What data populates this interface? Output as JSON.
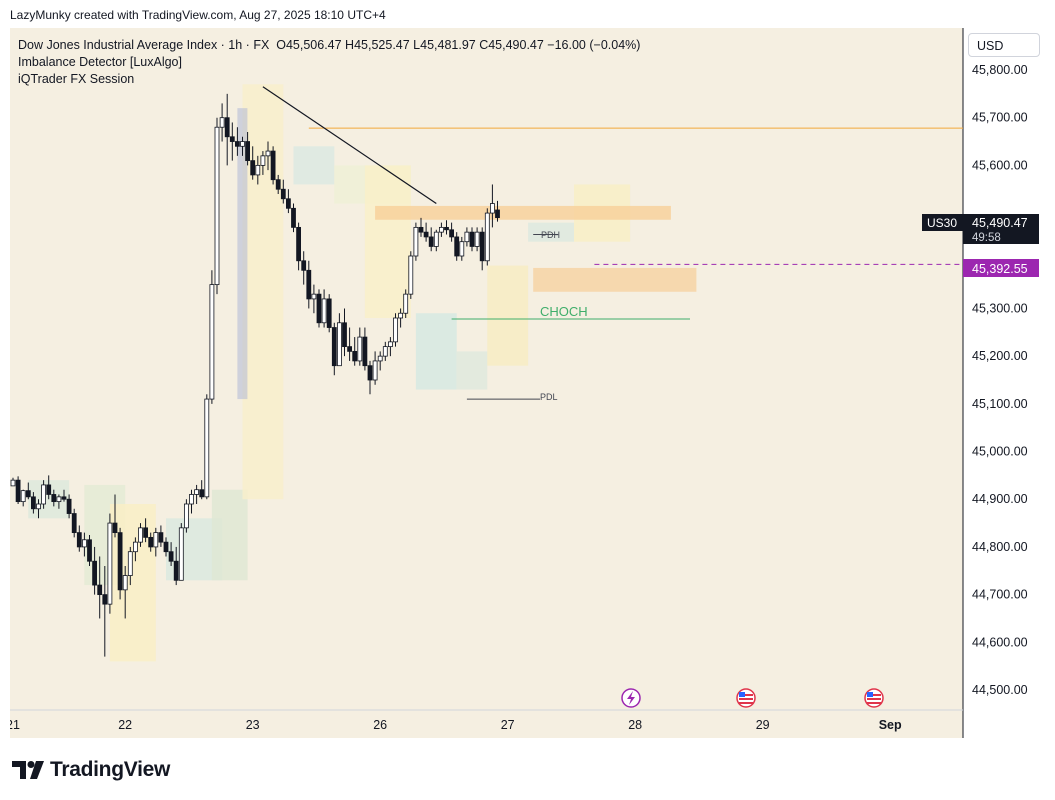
{
  "header": {
    "attribution": "LazyMunky created with TradingView.com, Aug 27, 2025 18:10 UTC+4"
  },
  "legend": {
    "symbol": "Dow Jones Industrial Average Index · 1h · FX",
    "ohlc": "O45,506.47  H45,525.47  L45,481.97  C45,490.47  −16.00 (−0.04%)",
    "indicator1": "Imbalance Detector [LuxAlgo]",
    "indicator2": "iQTrader FX Session"
  },
  "currency_button": "USD",
  "price_tags": {
    "symbol": "US30",
    "last_price": "45,490.47",
    "countdown": "49:58",
    "level_price": "45,392.55"
  },
  "annotations": {
    "choch": "CHOCH",
    "pdh": "PDH",
    "pdl": "PDL"
  },
  "brand": {
    "name": "TradingView"
  },
  "colors": {
    "background": "#f5efe1",
    "up": "#ffffff",
    "down": "#131722",
    "level_line": "#f2a93b",
    "choch": "#3fae6a",
    "dashed_level": "#9c27b0",
    "fvg": "#f7cf98"
  },
  "chart_data": {
    "type": "candlestick",
    "title": "Dow Jones Industrial Average Index · 1h · FX",
    "y_axis": {
      "ticks": [
        44500,
        44600,
        44700,
        44800,
        44900,
        45000,
        45100,
        45200,
        45300,
        45400,
        45500,
        45600,
        45700,
        45800
      ],
      "tick_labels": [
        "44,500.00",
        "44,600.00",
        "44,700.00",
        "44,800.00",
        "44,900.00",
        "45,000.00",
        "45,100.00",
        "45,200.00",
        "45,300.00",
        "",
        "",
        "45,600.00",
        "45,700.00",
        "45,800.00"
      ],
      "ylim": [
        44470,
        45880
      ]
    },
    "x_axis": {
      "tick_labels": [
        "21",
        "22",
        "23",
        "26",
        "27",
        "28",
        "29",
        "Sep"
      ],
      "tick_index": [
        0,
        22,
        47,
        72,
        97,
        122,
        147,
        172
      ]
    },
    "horizontal_levels": [
      {
        "name": "resistance",
        "value": 45678
      },
      {
        "name": "dashed_level",
        "value": 45392.55
      },
      {
        "name": "CHOCH",
        "value": 45278
      }
    ],
    "candles": [
      [
        44928,
        44945,
        44930,
        44940
      ],
      [
        44940,
        44948,
        44890,
        44895
      ],
      [
        44895,
        44920,
        44885,
        44918
      ],
      [
        44918,
        44935,
        44900,
        44905
      ],
      [
        44905,
        44915,
        44870,
        44880
      ],
      [
        44880,
        44900,
        44860,
        44890
      ],
      [
        44890,
        44940,
        44880,
        44930
      ],
      [
        44930,
        44950,
        44900,
        44910
      ],
      [
        44910,
        44920,
        44885,
        44895
      ],
      [
        44895,
        44910,
        44880,
        44905
      ],
      [
        44905,
        44920,
        44895,
        44900
      ],
      [
        44900,
        44910,
        44860,
        44870
      ],
      [
        44870,
        44880,
        44820,
        44830
      ],
      [
        44830,
        44845,
        44790,
        44800
      ],
      [
        44800,
        44830,
        44780,
        44815
      ],
      [
        44815,
        44825,
        44760,
        44770
      ],
      [
        44770,
        44800,
        44700,
        44720
      ],
      [
        44720,
        44780,
        44650,
        44700
      ],
      [
        44700,
        44760,
        44570,
        44680
      ],
      [
        44680,
        44870,
        44660,
        44850
      ],
      [
        44850,
        44910,
        44820,
        44830
      ],
      [
        44830,
        44840,
        44690,
        44710
      ],
      [
        44710,
        44760,
        44650,
        44740
      ],
      [
        44740,
        44800,
        44720,
        44790
      ],
      [
        44790,
        44820,
        44770,
        44810
      ],
      [
        44810,
        44850,
        44800,
        44840
      ],
      [
        44840,
        44860,
        44810,
        44820
      ],
      [
        44820,
        44830,
        44790,
        44800
      ],
      [
        44800,
        44840,
        44780,
        44830
      ],
      [
        44830,
        44845,
        44800,
        44810
      ],
      [
        44810,
        44820,
        44780,
        44790
      ],
      [
        44790,
        44810,
        44760,
        44770
      ],
      [
        44770,
        44800,
        44720,
        44730
      ],
      [
        44730,
        44850,
        44730,
        44840
      ],
      [
        44840,
        44900,
        44830,
        44890
      ],
      [
        44890,
        44920,
        44870,
        44910
      ],
      [
        44910,
        44930,
        44890,
        44920
      ],
      [
        44920,
        44940,
        44900,
        44905
      ],
      [
        44905,
        45120,
        44900,
        45110
      ],
      [
        45110,
        45380,
        45100,
        45350
      ],
      [
        45350,
        45700,
        45330,
        45680
      ],
      [
        45680,
        45730,
        45650,
        45700
      ],
      [
        45700,
        45750,
        45600,
        45660
      ],
      [
        45660,
        45690,
        45610,
        45650
      ],
      [
        45650,
        45680,
        45620,
        45640
      ],
      [
        45640,
        45660,
        45620,
        45650
      ],
      [
        45650,
        45670,
        45600,
        45610
      ],
      [
        45610,
        45640,
        45570,
        45580
      ],
      [
        45580,
        45620,
        45560,
        45600
      ],
      [
        45600,
        45630,
        45580,
        45620
      ],
      [
        45620,
        45650,
        45590,
        45630
      ],
      [
        45630,
        45640,
        45560,
        45570
      ],
      [
        45570,
        45580,
        45540,
        45550
      ],
      [
        45550,
        45570,
        45520,
        45530
      ],
      [
        45530,
        45550,
        45500,
        45510
      ],
      [
        45510,
        45520,
        45460,
        45470
      ],
      [
        45470,
        45480,
        45380,
        45400
      ],
      [
        45400,
        45420,
        45350,
        45380
      ],
      [
        45380,
        45400,
        45300,
        45320
      ],
      [
        45320,
        45350,
        45290,
        45330
      ],
      [
        45330,
        45340,
        45260,
        45270
      ],
      [
        45270,
        45340,
        45260,
        45320
      ],
      [
        45320,
        45330,
        45250,
        45260
      ],
      [
        45260,
        45270,
        45160,
        45180
      ],
      [
        45180,
        45290,
        45180,
        45270
      ],
      [
        45270,
        45300,
        45200,
        45220
      ],
      [
        45220,
        45260,
        45190,
        45210
      ],
      [
        45210,
        45240,
        45180,
        45190
      ],
      [
        45190,
        45260,
        45180,
        45240
      ],
      [
        45240,
        45260,
        45170,
        45180
      ],
      [
        45180,
        45190,
        45120,
        45150
      ],
      [
        45150,
        45210,
        45140,
        45190
      ],
      [
        45190,
        45210,
        45170,
        45200
      ],
      [
        45200,
        45230,
        45190,
        45220
      ],
      [
        45220,
        45240,
        45200,
        45230
      ],
      [
        45230,
        45290,
        45220,
        45280
      ],
      [
        45280,
        45300,
        45260,
        45290
      ],
      [
        45290,
        45340,
        45280,
        45330
      ],
      [
        45330,
        45420,
        45320,
        45410
      ],
      [
        45410,
        45480,
        45400,
        45470
      ],
      [
        45470,
        45490,
        45450,
        45460
      ],
      [
        45460,
        45480,
        45440,
        45450
      ],
      [
        45450,
        45470,
        45420,
        45430
      ],
      [
        45430,
        45465,
        45420,
        45460
      ],
      [
        45460,
        45480,
        45450,
        45470
      ],
      [
        45470,
        45485,
        45455,
        45465
      ],
      [
        45465,
        45480,
        45440,
        45450
      ],
      [
        45450,
        45460,
        45400,
        45410
      ],
      [
        45410,
        45450,
        45400,
        45440
      ],
      [
        45440,
        45470,
        45430,
        45460
      ],
      [
        45460,
        45470,
        45420,
        45430
      ],
      [
        45430,
        45470,
        45420,
        45460
      ],
      [
        45460,
        45470,
        45380,
        45400
      ],
      [
        45400,
        45510,
        45390,
        45500
      ],
      [
        45500,
        45560,
        45470,
        45520
      ],
      [
        45506.47,
        45525.47,
        45481.97,
        45490.47
      ]
    ]
  }
}
